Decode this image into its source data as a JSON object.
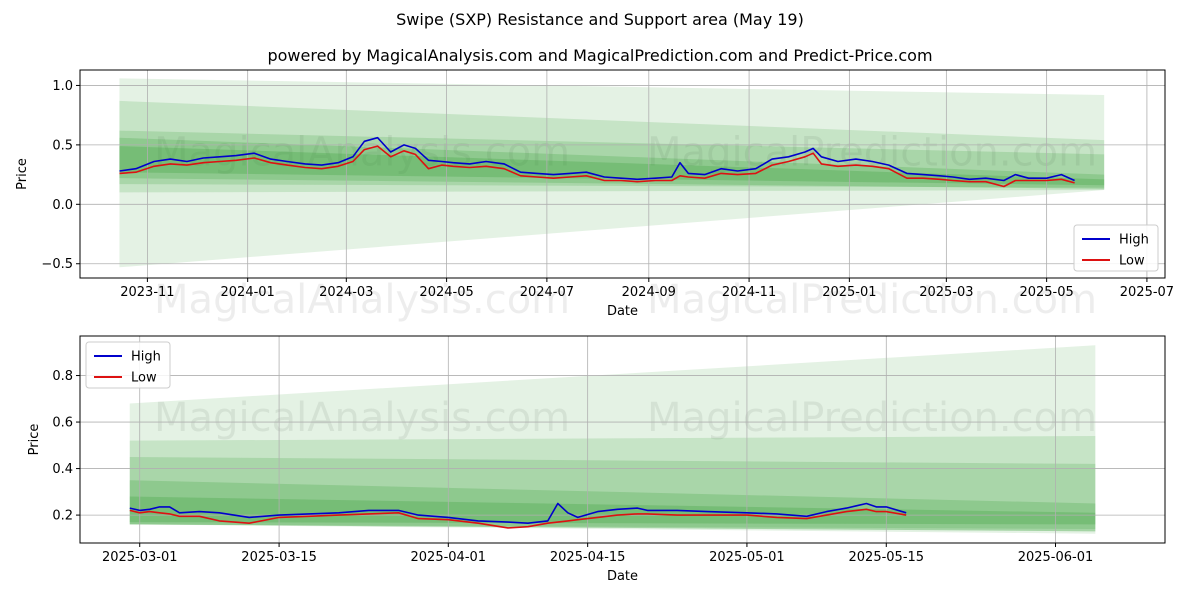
{
  "figure": {
    "title": "Swipe (SXP) Resistance and Support area (May 19)",
    "subtitle": "powered by MagicalAnalysis.com and MagicalPrediction.com and Predict-Price.com",
    "watermark_left": "MagicalAnalysis.com",
    "watermark_right": "MagicalPrediction.com"
  },
  "colors": {
    "high": "#0000cc",
    "low": "#dd1111",
    "band": "#2e9a2e",
    "grid": "#b0b0b0"
  },
  "chart_data": [
    {
      "type": "line",
      "xlabel": "Date",
      "ylabel": "Price",
      "xlim": [
        "2023-09-21",
        "2025-07-12"
      ],
      "ylim": [
        -0.62,
        1.13
      ],
      "xticks": [
        "2023-11-01",
        "2024-01-01",
        "2024-03-01",
        "2024-05-01",
        "2024-07-01",
        "2024-09-01",
        "2024-11-01",
        "2025-01-01",
        "2025-03-01",
        "2025-05-01",
        "2025-07-01"
      ],
      "xtick_labels": [
        "2023-11",
        "2024-01",
        "2024-03",
        "2024-05",
        "2024-07",
        "2024-09",
        "2024-11",
        "2025-01",
        "2025-03",
        "2025-05",
        "2025-07"
      ],
      "yticks": [
        -0.5,
        0.0,
        0.5,
        1.0
      ],
      "ytick_labels": [
        "−0.5",
        "0.0",
        "0.5",
        "1.0"
      ],
      "grid": true,
      "legend": {
        "position": "lower-right",
        "entries": [
          "High",
          "Low"
        ]
      },
      "series": [
        {
          "name": "High",
          "x": [
            "2023-10-15",
            "2023-10-25",
            "2023-11-05",
            "2023-11-15",
            "2023-11-25",
            "2023-12-05",
            "2023-12-15",
            "2023-12-25",
            "2024-01-05",
            "2024-01-15",
            "2024-01-25",
            "2024-02-05",
            "2024-02-15",
            "2024-02-25",
            "2024-03-05",
            "2024-03-12",
            "2024-03-20",
            "2024-03-28",
            "2024-04-05",
            "2024-04-12",
            "2024-04-20",
            "2024-04-28",
            "2024-05-05",
            "2024-05-15",
            "2024-05-25",
            "2024-06-05",
            "2024-06-15",
            "2024-06-25",
            "2024-07-05",
            "2024-07-15",
            "2024-07-25",
            "2024-08-05",
            "2024-08-15",
            "2024-08-25",
            "2024-09-05",
            "2024-09-15",
            "2024-09-20",
            "2024-09-25",
            "2024-10-05",
            "2024-10-15",
            "2024-10-25",
            "2024-11-05",
            "2024-11-15",
            "2024-11-25",
            "2024-12-05",
            "2024-12-10",
            "2024-12-15",
            "2024-12-25",
            "2025-01-05",
            "2025-01-15",
            "2025-01-25",
            "2025-02-05",
            "2025-02-15",
            "2025-02-25",
            "2025-03-05",
            "2025-03-15",
            "2025-03-25",
            "2025-04-05",
            "2025-04-12",
            "2025-04-20",
            "2025-05-01",
            "2025-05-10",
            "2025-05-18"
          ],
          "values": [
            0.28,
            0.3,
            0.36,
            0.38,
            0.36,
            0.39,
            0.4,
            0.41,
            0.43,
            0.38,
            0.36,
            0.34,
            0.33,
            0.35,
            0.4,
            0.53,
            0.56,
            0.44,
            0.5,
            0.47,
            0.37,
            0.36,
            0.35,
            0.34,
            0.36,
            0.34,
            0.27,
            0.26,
            0.25,
            0.26,
            0.27,
            0.23,
            0.22,
            0.21,
            0.22,
            0.23,
            0.35,
            0.26,
            0.25,
            0.3,
            0.28,
            0.3,
            0.38,
            0.4,
            0.44,
            0.47,
            0.4,
            0.36,
            0.38,
            0.36,
            0.33,
            0.26,
            0.25,
            0.24,
            0.23,
            0.21,
            0.22,
            0.2,
            0.25,
            0.22,
            0.22,
            0.25,
            0.2
          ]
        },
        {
          "name": "Low",
          "x": [
            "2023-10-15",
            "2023-10-25",
            "2023-11-05",
            "2023-11-15",
            "2023-11-25",
            "2023-12-05",
            "2023-12-15",
            "2023-12-25",
            "2024-01-05",
            "2024-01-15",
            "2024-01-25",
            "2024-02-05",
            "2024-02-15",
            "2024-02-25",
            "2024-03-05",
            "2024-03-12",
            "2024-03-20",
            "2024-03-28",
            "2024-04-05",
            "2024-04-12",
            "2024-04-20",
            "2024-04-28",
            "2024-05-05",
            "2024-05-15",
            "2024-05-25",
            "2024-06-05",
            "2024-06-15",
            "2024-06-25",
            "2024-07-05",
            "2024-07-15",
            "2024-07-25",
            "2024-08-05",
            "2024-08-15",
            "2024-08-25",
            "2024-09-05",
            "2024-09-15",
            "2024-09-20",
            "2024-09-25",
            "2024-10-05",
            "2024-10-15",
            "2024-10-25",
            "2024-11-05",
            "2024-11-15",
            "2024-11-25",
            "2024-12-05",
            "2024-12-10",
            "2024-12-15",
            "2024-12-25",
            "2025-01-05",
            "2025-01-15",
            "2025-01-25",
            "2025-02-05",
            "2025-02-15",
            "2025-02-25",
            "2025-03-05",
            "2025-03-15",
            "2025-03-25",
            "2025-04-05",
            "2025-04-12",
            "2025-04-20",
            "2025-05-01",
            "2025-05-10",
            "2025-05-18"
          ],
          "values": [
            0.26,
            0.27,
            0.32,
            0.34,
            0.33,
            0.35,
            0.36,
            0.37,
            0.39,
            0.35,
            0.33,
            0.31,
            0.3,
            0.32,
            0.36,
            0.46,
            0.49,
            0.4,
            0.45,
            0.42,
            0.3,
            0.33,
            0.32,
            0.31,
            0.32,
            0.3,
            0.24,
            0.23,
            0.22,
            0.23,
            0.24,
            0.2,
            0.2,
            0.19,
            0.2,
            0.2,
            0.24,
            0.23,
            0.22,
            0.26,
            0.25,
            0.26,
            0.33,
            0.36,
            0.4,
            0.43,
            0.34,
            0.32,
            0.33,
            0.32,
            0.3,
            0.22,
            0.22,
            0.21,
            0.2,
            0.19,
            0.19,
            0.15,
            0.2,
            0.2,
            0.2,
            0.21,
            0.18
          ]
        }
      ],
      "bands": [
        {
          "x": [
            "2023-10-15",
            "2025-06-05"
          ],
          "lower": [
            -0.53,
            0.12
          ],
          "upper": [
            1.06,
            0.92
          ]
        },
        {
          "x": [
            "2023-10-15",
            "2025-06-05"
          ],
          "lower": [
            0.1,
            0.12
          ],
          "upper": [
            0.87,
            0.54
          ]
        },
        {
          "x": [
            "2023-10-15",
            "2025-06-05"
          ],
          "lower": [
            0.17,
            0.14
          ],
          "upper": [
            0.62,
            0.42
          ]
        },
        {
          "x": [
            "2023-10-15",
            "2025-06-05"
          ],
          "lower": [
            0.22,
            0.13
          ],
          "upper": [
            0.56,
            0.25
          ]
        },
        {
          "x": [
            "2023-10-15",
            "2025-06-05"
          ],
          "lower": [
            0.27,
            0.16
          ],
          "upper": [
            0.49,
            0.21
          ]
        }
      ]
    },
    {
      "type": "line",
      "xlabel": "Date",
      "ylabel": "Price",
      "xlim": [
        "2025-02-23",
        "2025-06-12"
      ],
      "ylim": [
        0.08,
        0.97
      ],
      "xticks": [
        "2025-03-01",
        "2025-03-15",
        "2025-04-01",
        "2025-04-15",
        "2025-05-01",
        "2025-05-15",
        "2025-06-01"
      ],
      "xtick_labels": [
        "2025-03-01",
        "2025-03-15",
        "2025-04-01",
        "2025-04-15",
        "2025-05-01",
        "2025-05-15",
        "2025-06-01"
      ],
      "yticks": [
        0.2,
        0.4,
        0.6,
        0.8
      ],
      "ytick_labels": [
        "0.2",
        "0.4",
        "0.6",
        "0.8"
      ],
      "grid": true,
      "legend": {
        "position": "upper-left",
        "entries": [
          "High",
          "Low"
        ]
      },
      "series": [
        {
          "name": "High",
          "x": [
            "2025-02-28",
            "2025-03-01",
            "2025-03-02",
            "2025-03-03",
            "2025-03-04",
            "2025-03-05",
            "2025-03-07",
            "2025-03-09",
            "2025-03-12",
            "2025-03-15",
            "2025-03-18",
            "2025-03-21",
            "2025-03-24",
            "2025-03-27",
            "2025-03-29",
            "2025-04-01",
            "2025-04-04",
            "2025-04-07",
            "2025-04-09",
            "2025-04-11",
            "2025-04-12",
            "2025-04-13",
            "2025-04-14",
            "2025-04-16",
            "2025-04-18",
            "2025-04-20",
            "2025-04-21",
            "2025-04-24",
            "2025-04-27",
            "2025-05-01",
            "2025-05-04",
            "2025-05-07",
            "2025-05-09",
            "2025-05-11",
            "2025-05-12",
            "2025-05-13",
            "2025-05-14",
            "2025-05-15",
            "2025-05-17"
          ],
          "values": [
            0.23,
            0.22,
            0.225,
            0.235,
            0.235,
            0.21,
            0.215,
            0.21,
            0.19,
            0.2,
            0.205,
            0.21,
            0.22,
            0.22,
            0.2,
            0.19,
            0.175,
            0.17,
            0.165,
            0.175,
            0.25,
            0.21,
            0.19,
            0.215,
            0.225,
            0.23,
            0.22,
            0.22,
            0.215,
            0.21,
            0.205,
            0.195,
            0.215,
            0.23,
            0.24,
            0.25,
            0.235,
            0.235,
            0.21
          ]
        },
        {
          "name": "Low",
          "x": [
            "2025-02-28",
            "2025-03-01",
            "2025-03-02",
            "2025-03-03",
            "2025-03-04",
            "2025-03-05",
            "2025-03-07",
            "2025-03-09",
            "2025-03-12",
            "2025-03-15",
            "2025-03-18",
            "2025-03-21",
            "2025-03-24",
            "2025-03-27",
            "2025-03-29",
            "2025-04-01",
            "2025-04-04",
            "2025-04-07",
            "2025-04-09",
            "2025-04-11",
            "2025-04-12",
            "2025-04-13",
            "2025-04-14",
            "2025-04-16",
            "2025-04-18",
            "2025-04-20",
            "2025-04-21",
            "2025-04-24",
            "2025-04-27",
            "2025-05-01",
            "2025-05-04",
            "2025-05-07",
            "2025-05-09",
            "2025-05-11",
            "2025-05-12",
            "2025-05-13",
            "2025-05-14",
            "2025-05-15",
            "2025-05-17"
          ],
          "values": [
            0.22,
            0.21,
            0.215,
            0.21,
            0.205,
            0.195,
            0.195,
            0.175,
            0.165,
            0.19,
            0.195,
            0.2,
            0.205,
            0.21,
            0.185,
            0.18,
            0.165,
            0.145,
            0.15,
            0.165,
            0.17,
            0.175,
            0.18,
            0.19,
            0.2,
            0.205,
            0.205,
            0.2,
            0.2,
            0.2,
            0.19,
            0.185,
            0.2,
            0.215,
            0.22,
            0.225,
            0.215,
            0.215,
            0.2
          ]
        }
      ],
      "bands": [
        {
          "x": [
            "2025-02-28",
            "2025-06-05"
          ],
          "lower": [
            0.16,
            0.12
          ],
          "upper": [
            0.68,
            0.93
          ]
        },
        {
          "x": [
            "2025-02-28",
            "2025-06-05"
          ],
          "lower": [
            0.16,
            0.13
          ],
          "upper": [
            0.52,
            0.54
          ]
        },
        {
          "x": [
            "2025-02-28",
            "2025-06-05"
          ],
          "lower": [
            0.16,
            0.14
          ],
          "upper": [
            0.45,
            0.42
          ]
        },
        {
          "x": [
            "2025-02-28",
            "2025-06-05"
          ],
          "lower": [
            0.16,
            0.13
          ],
          "upper": [
            0.35,
            0.25
          ]
        },
        {
          "x": [
            "2025-02-28",
            "2025-06-05"
          ],
          "lower": [
            0.17,
            0.16
          ],
          "upper": [
            0.28,
            0.21
          ]
        }
      ]
    }
  ]
}
